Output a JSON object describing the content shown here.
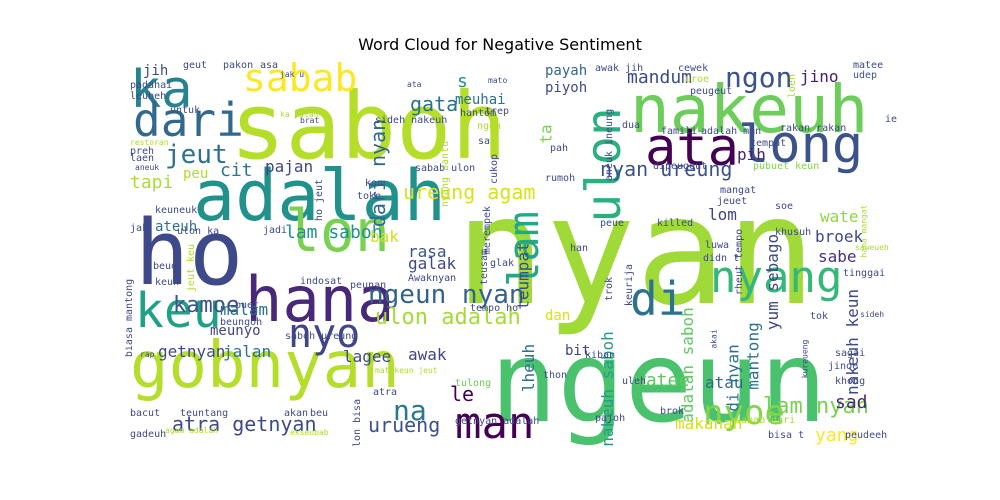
{
  "title": "Word Cloud for Negative Sentiment",
  "words": [
    {
      "text": "nyan",
      "color": "#a0da39"
    },
    {
      "text": "ngeun",
      "color": "#4ac16d"
    },
    {
      "text": "saboh",
      "color": "#b5de2b"
    },
    {
      "text": "ho",
      "color": "#3e4989"
    },
    {
      "text": "adalah",
      "color": "#21918c"
    },
    {
      "text": "nakeuh",
      "color": "#6ccd5a"
    },
    {
      "text": "hana",
      "color": "#482878"
    },
    {
      "text": "gobnyan",
      "color": "#b5de2b"
    },
    {
      "text": "lon",
      "color": "#7ad151"
    },
    {
      "text": "ka",
      "color": "#26828e"
    },
    {
      "text": "keu",
      "color": "#1fa187"
    },
    {
      "text": "ata",
      "color": "#440154"
    },
    {
      "text": "long",
      "color": "#3b528b"
    },
    {
      "text": "sabab",
      "color": "#fde725"
    },
    {
      "text": "dari",
      "color": "#31688e"
    },
    {
      "text": "nyang",
      "color": "#35b779"
    },
    {
      "text": "di",
      "color": "#2c728e"
    },
    {
      "text": "nyo",
      "color": "#414487"
    },
    {
      "text": "man",
      "color": "#440154"
    },
    {
      "text": "lam",
      "color": "#22a884"
    },
    {
      "text": "ulon",
      "color": "#2ab07f"
    },
    {
      "text": "ngon",
      "color": "#3b528b"
    },
    {
      "text": "jeut",
      "color": "#2c728e"
    },
    {
      "text": "nyoe",
      "color": "#84d44b"
    },
    {
      "text": "ngeun nyan",
      "color": "#33638d"
    },
    {
      "text": "ulon adalah",
      "color": "#a5db36"
    },
    {
      "text": "urueng",
      "color": "#3b528b"
    },
    {
      "text": "atra getnyan",
      "color": "#3e4a89"
    },
    {
      "text": "lam nyan",
      "color": "#7ad151"
    },
    {
      "text": "na",
      "color": "#2a788e"
    },
    {
      "text": "kamoe",
      "color": "#3b528b"
    },
    {
      "text": "dari nyan",
      "color": "#31688e"
    },
    {
      "text": "lam saboh",
      "color": "#21918c"
    },
    {
      "text": "ureung agam",
      "color": "#d8e219"
    },
    {
      "text": "nyan ureung",
      "color": "#3b528b"
    },
    {
      "text": "gata",
      "color": "#2c728e"
    },
    {
      "text": "tapi",
      "color": "#addc30"
    },
    {
      "text": "cit",
      "color": "#2a788e"
    },
    {
      "text": "pajan",
      "color": "#414487"
    },
    {
      "text": "mandum",
      "color": "#3e4a89"
    },
    {
      "text": "jino",
      "color": "#481a6c"
    },
    {
      "text": "pih",
      "color": "#482173"
    },
    {
      "text": "bak",
      "color": "#d0e11c"
    },
    {
      "text": "rasa",
      "color": "#3b528b"
    },
    {
      "text": "galak",
      "color": "#3e4989"
    },
    {
      "text": "teumpat",
      "color": "#3e4a89"
    },
    {
      "text": "lom",
      "color": "#414487"
    },
    {
      "text": "wate",
      "color": "#8fd744"
    },
    {
      "text": "broek",
      "color": "#3e4a89"
    },
    {
      "text": "sabe",
      "color": "#46327e"
    },
    {
      "text": "mantong",
      "color": "#2c728e"
    },
    {
      "text": "nakeuh keun",
      "color": "#3e4a89"
    },
    {
      "text": "nakeuh saboh",
      "color": "#1f9e89"
    },
    {
      "text": "adalah saboh",
      "color": "#5ec962"
    },
    {
      "text": "awak",
      "color": "#414487"
    },
    {
      "text": "le",
      "color": "#440154"
    },
    {
      "text": "yang",
      "color": "#fde725"
    },
    {
      "text": "sad",
      "color": "#482878"
    },
    {
      "text": "watee",
      "color": "#5ec962"
    },
    {
      "text": "atau",
      "color": "#31688e"
    },
    {
      "text": "makanan",
      "color": "#d0e11c"
    },
    {
      "text": "jalan",
      "color": "#2c728e"
    },
    {
      "text": "getnyan",
      "color": "#3e4a89"
    },
    {
      "text": "lagee",
      "color": "#3e4a89"
    },
    {
      "text": "malam",
      "color": "#2c728e"
    },
    {
      "text": "meunyo",
      "color": "#414487"
    },
    {
      "text": "payah",
      "color": "#31688e"
    },
    {
      "text": "piyoh",
      "color": "#3e4a89"
    },
    {
      "text": "meuhai",
      "color": "#2c728e"
    },
    {
      "text": "jih",
      "color": "#3e4a89"
    },
    {
      "text": "s",
      "color": "#21918c"
    },
    {
      "text": "ta",
      "color": "#7ad151"
    },
    {
      "text": "di nyan",
      "color": "#2c728e"
    },
    {
      "text": "yum sebago",
      "color": "#3e4a89"
    },
    {
      "text": "lheuh",
      "color": "#2c728e"
    },
    {
      "text": "dan",
      "color": "#d8e219"
    },
    {
      "text": "bit",
      "color": "#414487"
    },
    {
      "text": "ateuh",
      "color": "#2c728e"
    },
    {
      "text": "peu",
      "color": "#addc30"
    },
    {
      "text": "hantom",
      "color": "#3e4a89"
    },
    {
      "text": "awak jih",
      "color": "#3e4a89"
    },
    {
      "text": "udep",
      "color": "#3b528b"
    },
    {
      "text": "matee",
      "color": "#3e4a89"
    },
    {
      "text": "rakan rakan",
      "color": "#3e4a89"
    },
    {
      "text": "adalah man",
      "color": "#3e4a89"
    },
    {
      "text": "tempat",
      "color": "#3e4a89"
    },
    {
      "text": "pubuet keun",
      "color": "#84d44b"
    },
    {
      "text": "mangat",
      "color": "#3e4a89"
    },
    {
      "text": "jeuet",
      "color": "#3e4a89"
    },
    {
      "text": "khong",
      "color": "#3e4a89"
    },
    {
      "text": "tinggai",
      "color": "#3e4a89"
    },
    {
      "text": "jinoe",
      "color": "#3e4a89"
    },
    {
      "text": "sagai",
      "color": "#3e4a89"
    },
    {
      "text": "tok",
      "color": "#3e4a89"
    },
    {
      "text": "kiban",
      "color": "#3e4a89"
    },
    {
      "text": "pajoh",
      "color": "#3e4a89"
    },
    {
      "text": "brok",
      "color": "#3e4a89"
    },
    {
      "text": "thon",
      "color": "#3e4a89"
    },
    {
      "text": "uleh",
      "color": "#3e4a89"
    },
    {
      "text": "tulong",
      "color": "#6ccd5a"
    },
    {
      "text": "bisa t",
      "color": "#3e4a89"
    },
    {
      "text": "peudeeh",
      "color": "#3e4a89"
    },
    {
      "text": "sabab dari",
      "color": "#addc30"
    },
    {
      "text": "getnyan adalah",
      "color": "#3e4a89"
    },
    {
      "text": "akan",
      "color": "#3e4a89"
    },
    {
      "text": "beu",
      "color": "#3e4a89"
    },
    {
      "text": "bacut",
      "color": "#3e4a89"
    },
    {
      "text": "teuntang",
      "color": "#3e4a89"
    },
    {
      "text": "gadeuh",
      "color": "#3e4a89"
    },
    {
      "text": "agam adalah",
      "color": "#addc30"
    },
    {
      "text": "ekseubab",
      "color": "#addc30"
    },
    {
      "text": "rap",
      "color": "#3e4a89"
    },
    {
      "text": "biasa mantong",
      "color": "#3e4a89"
    },
    {
      "text": "jeut keu",
      "color": "#addc30"
    },
    {
      "text": "keun",
      "color": "#3e4a89"
    },
    {
      "text": "beuo",
      "color": "#3e4a89"
    },
    {
      "text": "buet",
      "color": "#3e4a89"
    },
    {
      "text": "indosat",
      "color": "#3e4a89"
    },
    {
      "text": "peunan",
      "color": "#3e4a89"
    },
    {
      "text": "Awaknyan",
      "color": "#3e4a89"
    },
    {
      "text": "beungoh",
      "color": "#3e4a89"
    },
    {
      "text": "saboh ureung",
      "color": "#3e4a89"
    },
    {
      "text": "ulon bisa",
      "color": "#3e4a89"
    },
    {
      "text": "tempo ho",
      "color": "#3e4a89"
    },
    {
      "text": "atra",
      "color": "#3e4a89"
    },
    {
      "text": "matekeun jeut",
      "color": "#addc30"
    },
    {
      "text": "ulon ka",
      "color": "#3e4a89"
    },
    {
      "text": "jadi",
      "color": "#3e4a89"
    },
    {
      "text": "jak",
      "color": "#3e4a89"
    },
    {
      "text": "keuneuk",
      "color": "#3e4a89"
    },
    {
      "text": "laen",
      "color": "#3e4a89"
    },
    {
      "text": "preh",
      "color": "#3e4a89"
    },
    {
      "text": "restoran",
      "color": "#addc30"
    },
    {
      "text": "aneuk",
      "color": "#3e4a89"
    },
    {
      "text": "ho jeut",
      "color": "#3e4a89"
    },
    {
      "text": "toke",
      "color": "#3e4a89"
    },
    {
      "text": "kon",
      "color": "#3e4a89"
    },
    {
      "text": "sabab ulon",
      "color": "#3e4a89"
    },
    {
      "text": "sideh nakeuh",
      "color": "#3e4a89"
    },
    {
      "text": "nyang bantu",
      "color": "#addc30"
    },
    {
      "text": "ngen",
      "color": "#addc30"
    },
    {
      "text": "trep",
      "color": "#3e4a89"
    },
    {
      "text": "sa",
      "color": "#3e4a89"
    },
    {
      "text": "cukop",
      "color": "#3e4a89"
    },
    {
      "text": "pah",
      "color": "#3e4a89"
    },
    {
      "text": "rumoh",
      "color": "#3e4a89"
    },
    {
      "text": "dua",
      "color": "#3e4a89"
    },
    {
      "text": "aneuk ineung",
      "color": "#3e4a89"
    },
    {
      "text": "famili",
      "color": "#3e4a89"
    },
    {
      "text": "dipeugeut",
      "color": "#3e4a89"
    },
    {
      "text": "merempek",
      "color": "#3e4a89"
    },
    {
      "text": "teusam",
      "color": "#3e4a89"
    },
    {
      "text": "glak",
      "color": "#3e4a89"
    },
    {
      "text": "han",
      "color": "#3e4a89"
    },
    {
      "text": "killed",
      "color": "#3e4a89"
    },
    {
      "text": "peue",
      "color": "#3e4a89"
    },
    {
      "text": "trok",
      "color": "#3e4a89"
    },
    {
      "text": "keurija",
      "color": "#3e4a89"
    },
    {
      "text": "luwa",
      "color": "#3e4a89"
    },
    {
      "text": "didn t",
      "color": "#3e4a89"
    },
    {
      "text": "soe",
      "color": "#3e4a89"
    },
    {
      "text": "khusuh",
      "color": "#3e4a89"
    },
    {
      "text": "rheut tempo",
      "color": "#3e4a89"
    },
    {
      "text": "hana mangat",
      "color": "#addc30"
    },
    {
      "text": "saweueh",
      "color": "#addc30"
    },
    {
      "text": "cewek",
      "color": "#3e4a89"
    },
    {
      "text": "uroe",
      "color": "#addc30"
    },
    {
      "text": "peugeut",
      "color": "#3e4a89"
    },
    {
      "text": "ie",
      "color": "#3e4a89"
    },
    {
      "text": "sideh",
      "color": "#3e4a89"
    },
    {
      "text": "kureueng",
      "color": "#3e4a89"
    },
    {
      "text": "padahai",
      "color": "#3e4a89"
    },
    {
      "text": "leubeh",
      "color": "#3e4a89"
    },
    {
      "text": "geut",
      "color": "#3e4a89"
    },
    {
      "text": "pakon",
      "color": "#3e4a89"
    },
    {
      "text": "asa",
      "color": "#3e4a89"
    },
    {
      "text": "jak u",
      "color": "#3e4a89"
    },
    {
      "text": "brat",
      "color": "#3e4a89"
    },
    {
      "text": "untuk",
      "color": "#3e4a89"
    },
    {
      "text": "ka patah",
      "color": "#addc30"
    },
    {
      "text": "mato",
      "color": "#3e4a89"
    },
    {
      "text": "ata",
      "color": "#3e4a89"
    },
    {
      "text": "loen",
      "color": "#addc30"
    },
    {
      "text": "akai",
      "color": "#3e4a89"
    }
  ]
}
